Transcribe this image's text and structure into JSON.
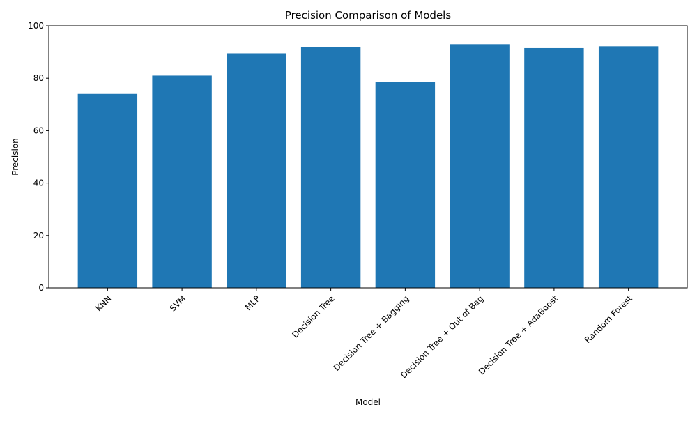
{
  "chart_data": {
    "type": "bar",
    "title": "Precision Comparison of Models",
    "xlabel": "Model",
    "ylabel": "Precision",
    "categories": [
      "KNN",
      "SVM",
      "MLP",
      "Decision Tree",
      "Decision Tree + Bagging",
      "Decision Tree + Out of Bag",
      "Decision Tree + AdaBoost",
      "Random Forest"
    ],
    "values": [
      74.0,
      81.0,
      89.5,
      92.0,
      78.5,
      93.0,
      91.5,
      92.2
    ],
    "ylim": [
      0,
      100
    ],
    "yticks": [
      0,
      20,
      40,
      60,
      80,
      100
    ],
    "grid": false,
    "legend": "none",
    "bar_color": "#1f77b4",
    "x_tick_rotation_deg": 45
  }
}
